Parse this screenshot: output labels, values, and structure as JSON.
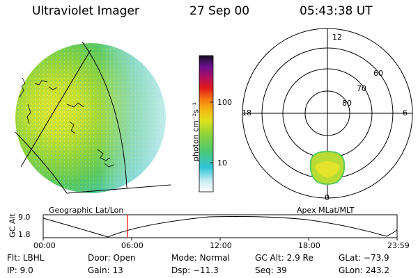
{
  "header": {
    "instrument": "Ultraviolet Imager",
    "date": "27 Sep 00",
    "time": "05:43:38 UT"
  },
  "colorbar": {
    "unit_label": "photon cm⁻²s⁻¹",
    "ticks": [
      "100",
      "10"
    ]
  },
  "panels": {
    "left_caption": "Geographic Lat/Lon",
    "right_caption": "Apex MLat/MLT"
  },
  "polar_plot": {
    "mlt_labels": {
      "top": "12",
      "left": "18",
      "right": "6",
      "bottom": "0"
    },
    "lat_labels": [
      "60",
      "70",
      "80"
    ]
  },
  "altitude_strip": {
    "y_label": "GC Alt",
    "y_ticks": [
      "9.0",
      "1.8"
    ],
    "x_ticks": [
      "00:00",
      "06:00",
      "12:00",
      "18:00",
      "23:59"
    ],
    "marker_color": "#ff0000"
  },
  "status": {
    "row1": [
      {
        "label": "Flt:",
        "value": "LBHL"
      },
      {
        "label": "Door:",
        "value": "Open"
      },
      {
        "label": "Mode:",
        "value": "Normal"
      },
      {
        "label": "GC Alt:",
        "value": "2.9 Re"
      },
      {
        "label": "GLat:",
        "value": "−73.9"
      }
    ],
    "row2": [
      {
        "label": "IP:",
        "value": "9.0"
      },
      {
        "label": "Gain:",
        "value": "13"
      },
      {
        "label": "Dsp:",
        "value": "−11.3"
      },
      {
        "label": "Seq:",
        "value": "39"
      },
      {
        "label": "GLon:",
        "value": "243.2"
      }
    ]
  }
}
